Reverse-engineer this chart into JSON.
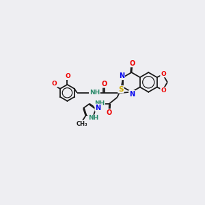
{
  "background_color": "#eeeef2",
  "bond_color": "#1a1a1a",
  "atom_colors": {
    "N": "#0000ee",
    "O": "#ee0000",
    "S": "#ccaa00",
    "C": "#1a1a1a",
    "NH": "#2a8a6a"
  },
  "figsize": [
    3.0,
    3.0
  ],
  "dpi": 100
}
